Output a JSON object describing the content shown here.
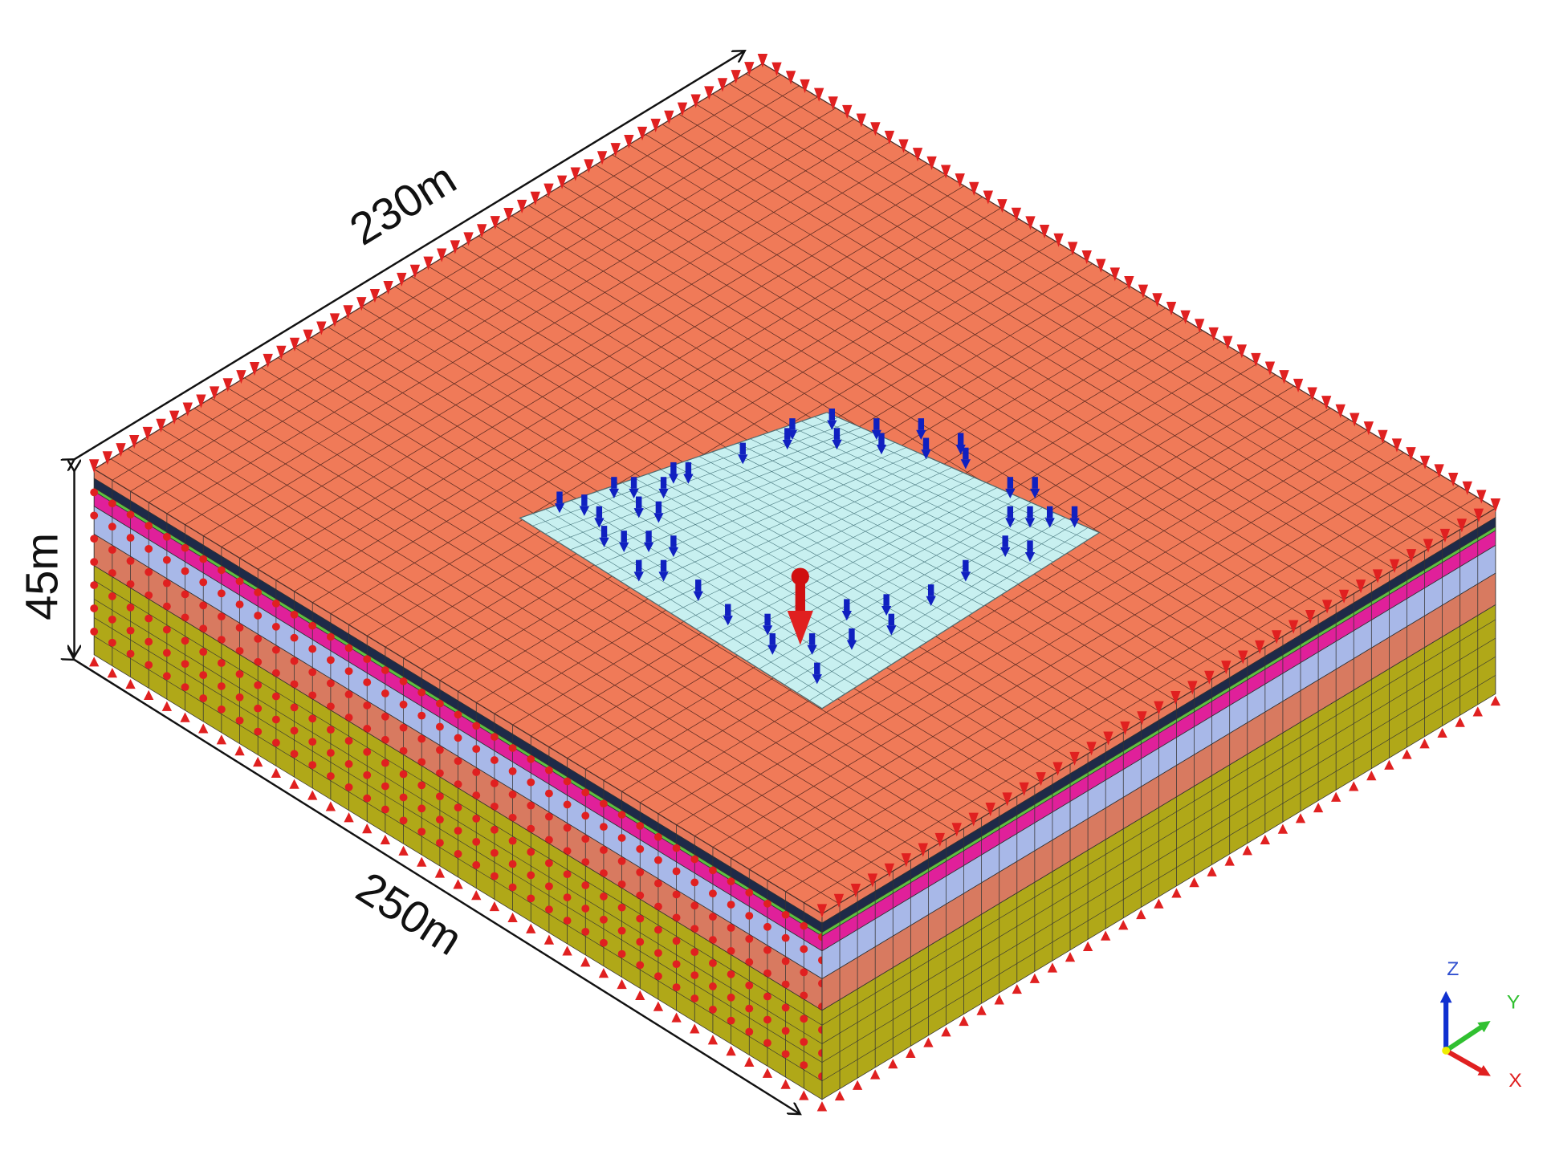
{
  "dimensions": {
    "length": "230m",
    "height": "45m",
    "width": "250m"
  },
  "axes": {
    "z": "Z",
    "y": "Y",
    "x": "X"
  }
}
